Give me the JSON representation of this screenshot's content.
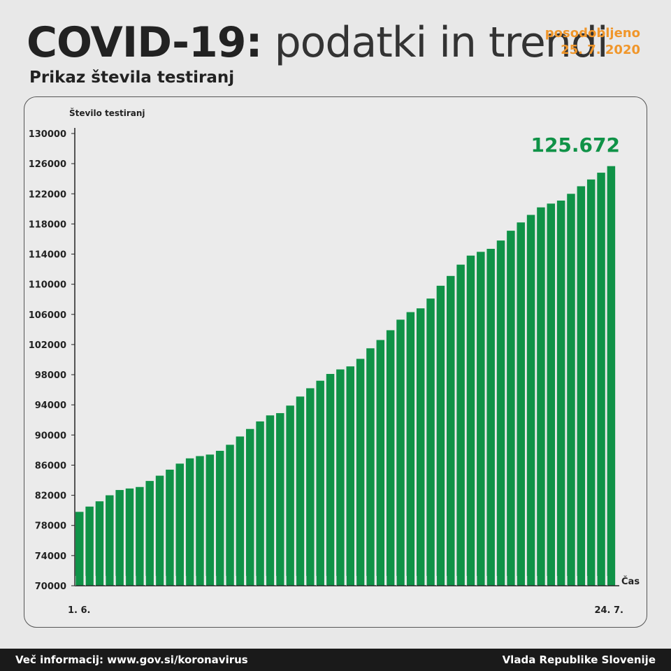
{
  "header": {
    "title_bold": "COVID-19:",
    "title_light": "podatki in trendi",
    "updated_label": "posodobljeno",
    "updated_date": "25. 7. 2020",
    "subtitle": "Prikaz števila testiranj"
  },
  "footer": {
    "left": "Več informacij: www.gov.si/koronavirus",
    "right": "Vlada Republike Slovenije"
  },
  "colors": {
    "bar": "#0f9247",
    "highlight": "#0f9247",
    "axis": "#222222",
    "updated": "#f0962a"
  },
  "chart_data": {
    "type": "bar",
    "ylabel": "Število testiranj",
    "xlabel": "Čas",
    "ylim": [
      70000,
      130000
    ],
    "yticks": [
      70000,
      74000,
      78000,
      82000,
      86000,
      90000,
      94000,
      98000,
      102000,
      106000,
      110000,
      114000,
      118000,
      122000,
      126000,
      130000
    ],
    "x_start_label": "1. 6.",
    "x_end_label": "24. 7.",
    "highlight_value_label": "125.672",
    "grid": false,
    "values": [
      79800,
      80500,
      81200,
      82000,
      82700,
      82900,
      83100,
      83900,
      84600,
      85400,
      86200,
      86900,
      87200,
      87400,
      87900,
      88700,
      89800,
      90800,
      91800,
      92600,
      92900,
      93900,
      95100,
      96200,
      97200,
      98100,
      98700,
      99100,
      100100,
      101500,
      102600,
      103900,
      105300,
      106300,
      106800,
      108100,
      109800,
      111100,
      112600,
      113800,
      114300,
      114700,
      115800,
      117100,
      118200,
      119200,
      120200,
      120700,
      121100,
      122000,
      123000,
      123900,
      124800,
      125672
    ]
  }
}
